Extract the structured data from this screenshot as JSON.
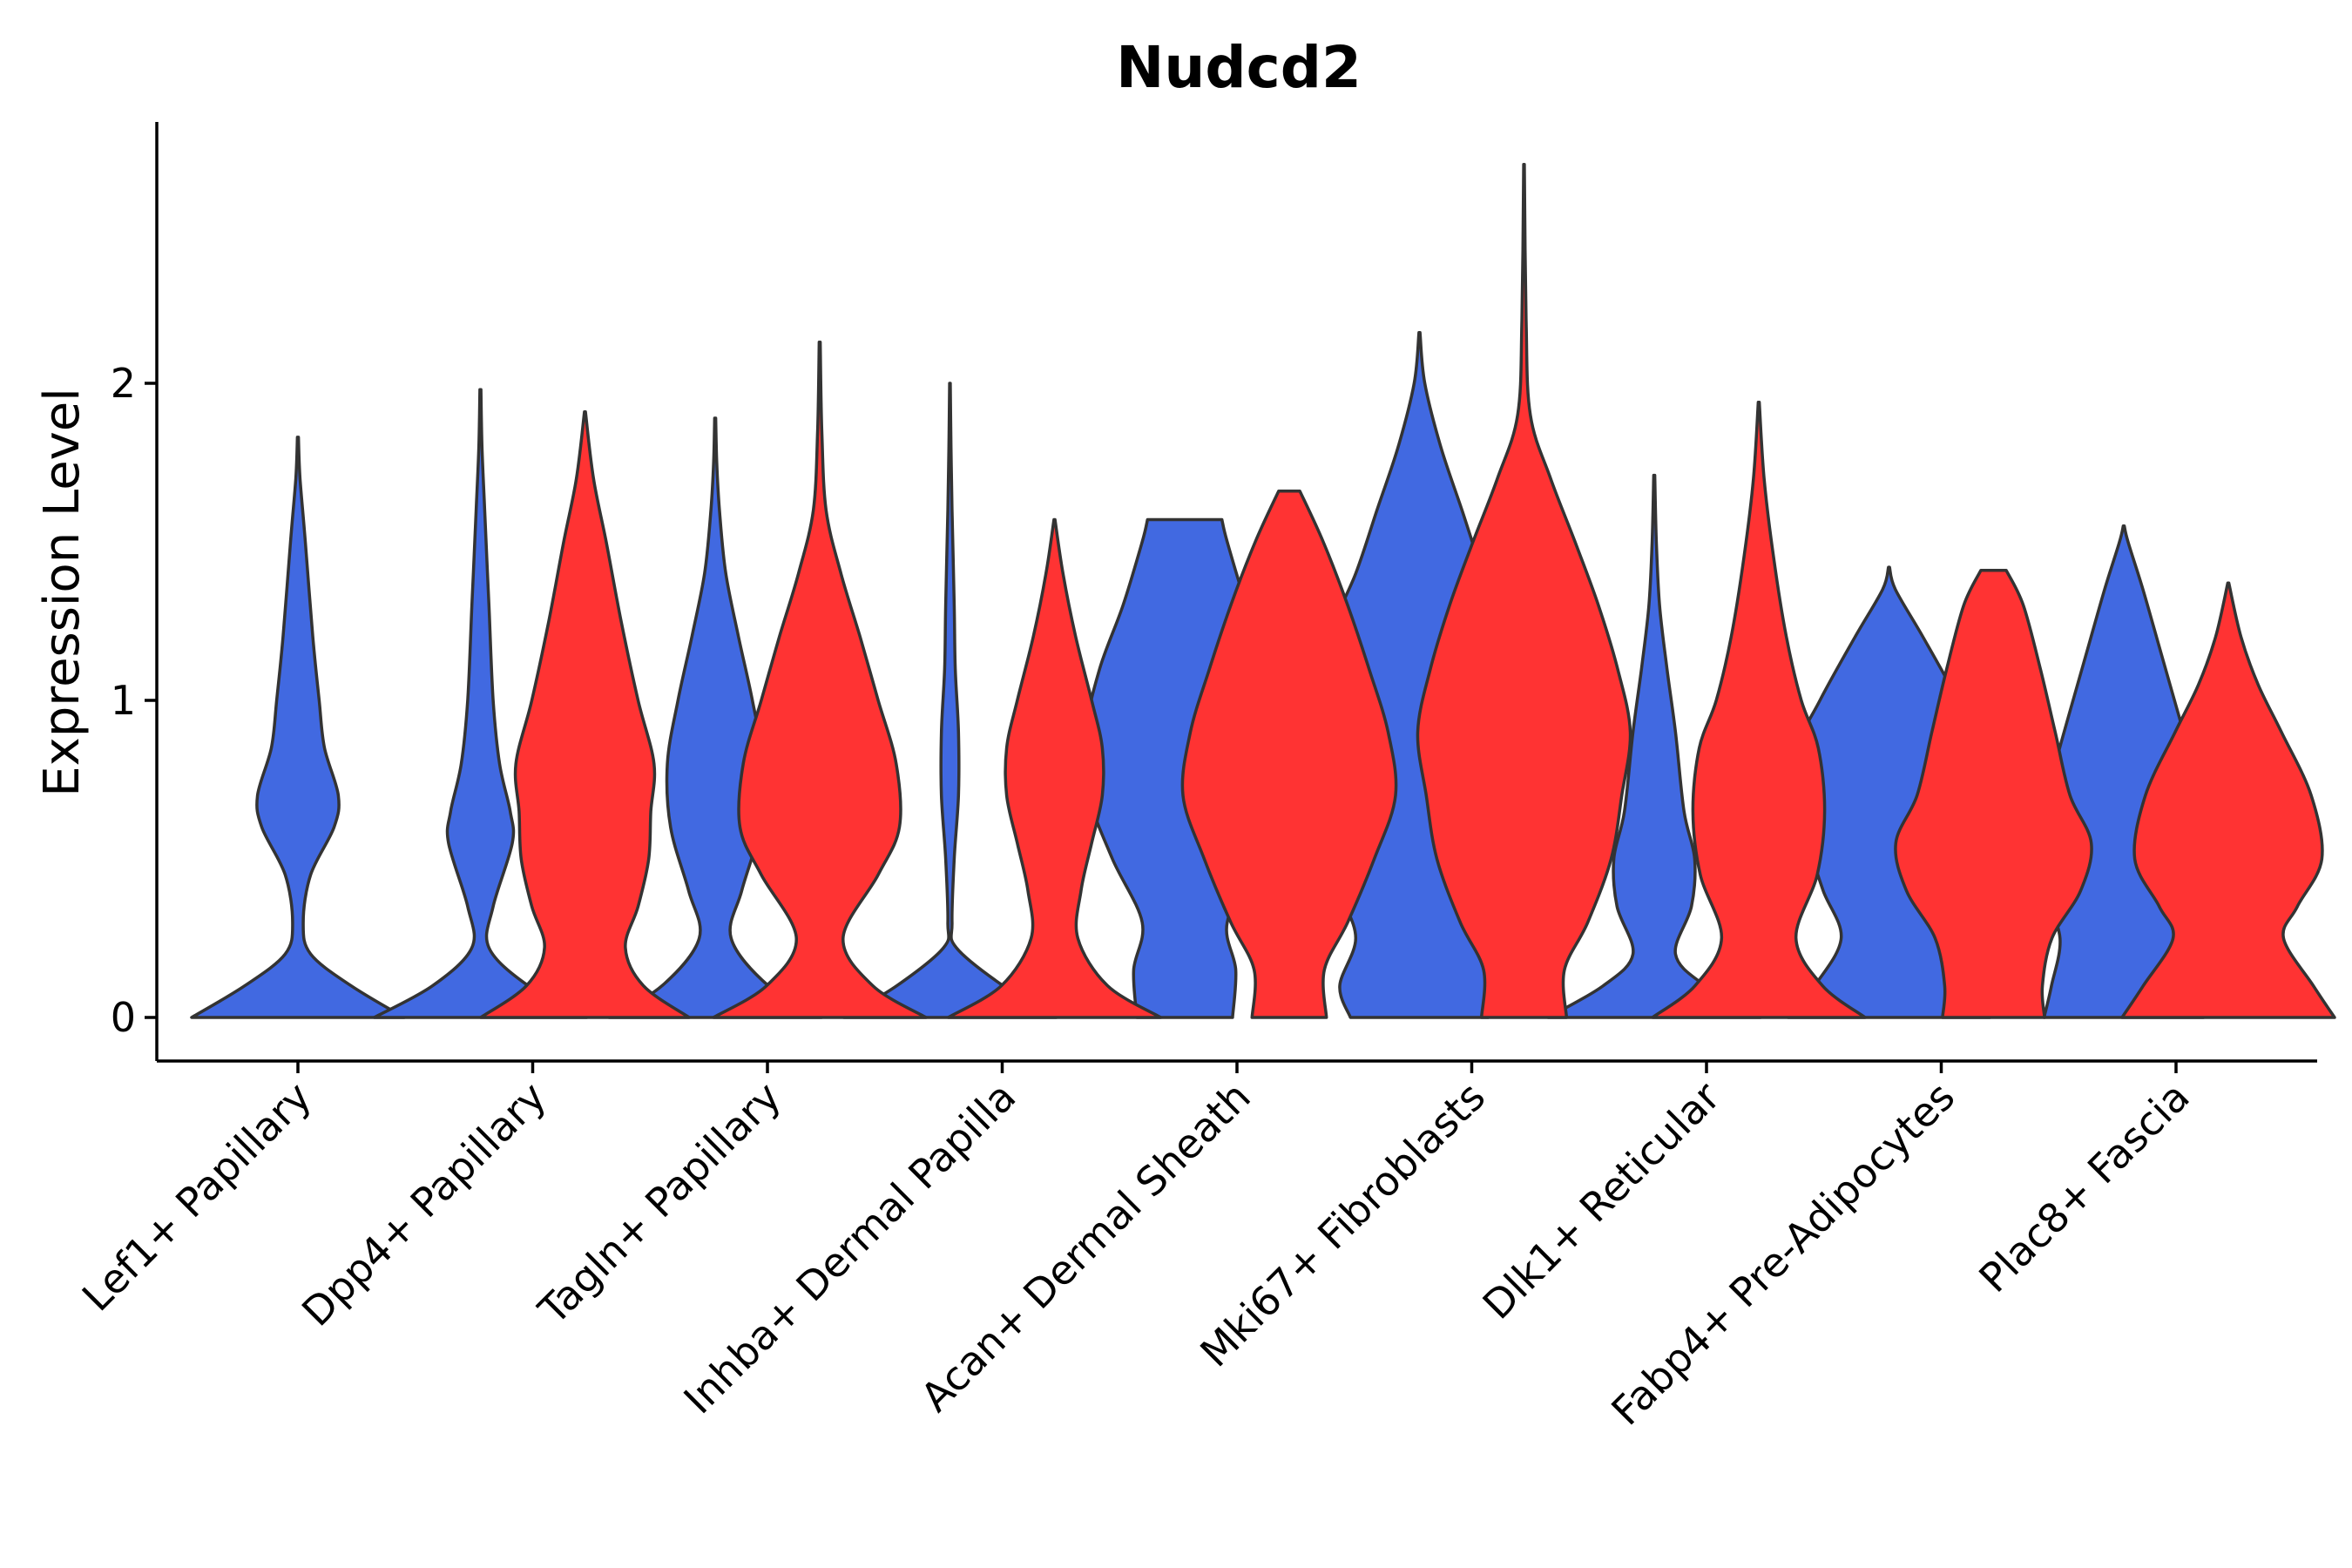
{
  "chart_data": {
    "type": "violin",
    "title": "Nudcd2",
    "xlabel": "",
    "ylabel": "Expression Level",
    "ylim": [
      -0.13,
      2.82
    ],
    "yticks": [
      0,
      1,
      2
    ],
    "grid": false,
    "legend": "none",
    "categories": [
      "Lef1+ Papillary",
      "Dpp4+ Papillary",
      "Tagln+ Papillary",
      "Inhba+ Dermal Papilla",
      "Acan+ Dermal Sheath",
      "Mki67+ Fibroblasts",
      "Dlk1+ Reticular",
      "Fabp4+ Pre-Adipocytes",
      "Plac8+ Fascia"
    ],
    "series": [
      {
        "name": "group1",
        "color": "#4169E1",
        "violins": [
          {
            "category": "Lef1+ Papillary",
            "max": 1.83,
            "profile": [
              [
                0,
                1.0
              ],
              [
                0.1,
                0.5
              ],
              [
                0.2,
                0.12
              ],
              [
                0.3,
                0.05
              ],
              [
                0.45,
                0.12
              ],
              [
                0.6,
                0.34
              ],
              [
                0.7,
                0.38
              ],
              [
                0.85,
                0.25
              ],
              [
                1.0,
                0.2
              ],
              [
                1.2,
                0.14
              ],
              [
                1.5,
                0.07
              ],
              [
                1.7,
                0.02
              ],
              [
                1.83,
                0.005
              ]
            ]
          },
          {
            "category": "Dpp4+ Papillary",
            "max": 1.98,
            "profile": [
              [
                0,
                1.0
              ],
              [
                0.1,
                0.45
              ],
              [
                0.22,
                0.08
              ],
              [
                0.35,
                0.12
              ],
              [
                0.55,
                0.3
              ],
              [
                0.65,
                0.28
              ],
              [
                0.8,
                0.18
              ],
              [
                1.0,
                0.12
              ],
              [
                1.3,
                0.08
              ],
              [
                1.6,
                0.04
              ],
              [
                1.8,
                0.015
              ],
              [
                1.98,
                0.005
              ]
            ]
          },
          {
            "category": "Tagln+ Papillary",
            "max": 1.89,
            "profile": [
              [
                0,
                1.0
              ],
              [
                0.1,
                0.5
              ],
              [
                0.25,
                0.15
              ],
              [
                0.4,
                0.25
              ],
              [
                0.6,
                0.42
              ],
              [
                0.8,
                0.45
              ],
              [
                1.0,
                0.35
              ],
              [
                1.2,
                0.22
              ],
              [
                1.4,
                0.1
              ],
              [
                1.6,
                0.04
              ],
              [
                1.75,
                0.015
              ],
              [
                1.89,
                0.005
              ]
            ]
          },
          {
            "category": "Inhba+ Dermal Papilla",
            "max": 2.0,
            "profile": [
              [
                0,
                1.0
              ],
              [
                0.1,
                0.5
              ],
              [
                0.22,
                0.06
              ],
              [
                0.3,
                0.02
              ],
              [
                0.5,
                0.04
              ],
              [
                0.7,
                0.08
              ],
              [
                0.9,
                0.08
              ],
              [
                1.1,
                0.05
              ],
              [
                1.3,
                0.04
              ],
              [
                1.6,
                0.02
              ],
              [
                1.8,
                0.01
              ],
              [
                2.0,
                0.003
              ]
            ]
          },
          {
            "category": "Acan+ Dermal Sheath",
            "max": 1.57,
            "profile": [
              [
                0,
                0.45
              ],
              [
                0.15,
                0.48
              ],
              [
                0.3,
                0.4
              ],
              [
                0.5,
                0.68
              ],
              [
                0.7,
                0.9
              ],
              [
                0.9,
                0.93
              ],
              [
                1.1,
                0.8
              ],
              [
                1.3,
                0.58
              ],
              [
                1.5,
                0.4
              ],
              [
                1.57,
                0.35
              ]
            ]
          },
          {
            "category": "Mki67+ Fibroblasts",
            "max": 2.16,
            "profile": [
              [
                0,
                0.65
              ],
              [
                0.1,
                0.75
              ],
              [
                0.25,
                0.6
              ],
              [
                0.4,
                0.75
              ],
              [
                0.6,
                0.9
              ],
              [
                0.85,
                0.95
              ],
              [
                1.0,
                0.92
              ],
              [
                1.2,
                0.85
              ],
              [
                1.4,
                0.6
              ],
              [
                1.6,
                0.4
              ],
              [
                1.8,
                0.2
              ],
              [
                2.0,
                0.05
              ],
              [
                2.16,
                0.005
              ]
            ]
          },
          {
            "category": "Dlk1+ Reticular",
            "max": 1.71,
            "profile": [
              [
                0,
                1.0
              ],
              [
                0.1,
                0.48
              ],
              [
                0.2,
                0.2
              ],
              [
                0.35,
                0.35
              ],
              [
                0.5,
                0.38
              ],
              [
                0.65,
                0.28
              ],
              [
                0.9,
                0.2
              ],
              [
                1.1,
                0.12
              ],
              [
                1.3,
                0.05
              ],
              [
                1.5,
                0.02
              ],
              [
                1.71,
                0.005
              ]
            ]
          },
          {
            "category": "Fabp4+ Pre-Adipocytes",
            "max": 1.42,
            "profile": [
              [
                0,
                0.95
              ],
              [
                0.1,
                0.7
              ],
              [
                0.25,
                0.45
              ],
              [
                0.4,
                0.62
              ],
              [
                0.55,
                0.76
              ],
              [
                0.65,
                0.82
              ],
              [
                0.85,
                0.85
              ],
              [
                1.0,
                0.65
              ],
              [
                1.2,
                0.32
              ],
              [
                1.35,
                0.06
              ],
              [
                1.42,
                0.005
              ]
            ]
          },
          {
            "category": "Plac8+ Fascia",
            "max": 1.55,
            "profile": [
              [
                0,
                0.75
              ],
              [
                0.1,
                0.68
              ],
              [
                0.25,
                0.6
              ],
              [
                0.4,
                0.75
              ],
              [
                0.55,
                0.8
              ],
              [
                0.75,
                0.68
              ],
              [
                0.95,
                0.52
              ],
              [
                1.15,
                0.35
              ],
              [
                1.35,
                0.18
              ],
              [
                1.5,
                0.04
              ],
              [
                1.55,
                0.005
              ]
            ]
          }
        ]
      },
      {
        "name": "group2",
        "color": "#FF3333",
        "violins": [
          {
            "category": "Dpp4+ Papillary",
            "max": 1.91,
            "profile": [
              [
                0,
                0.98
              ],
              [
                0.1,
                0.55
              ],
              [
                0.22,
                0.38
              ],
              [
                0.35,
                0.5
              ],
              [
                0.5,
                0.6
              ],
              [
                0.65,
                0.62
              ],
              [
                0.8,
                0.65
              ],
              [
                1.0,
                0.5
              ],
              [
                1.25,
                0.34
              ],
              [
                1.5,
                0.2
              ],
              [
                1.7,
                0.08
              ],
              [
                1.91,
                0.005
              ]
            ]
          },
          {
            "category": "Tagln+ Papillary",
            "max": 2.13,
            "profile": [
              [
                0,
                1.0
              ],
              [
                0.1,
                0.5
              ],
              [
                0.25,
                0.22
              ],
              [
                0.45,
                0.55
              ],
              [
                0.6,
                0.75
              ],
              [
                0.8,
                0.72
              ],
              [
                1.0,
                0.55
              ],
              [
                1.2,
                0.38
              ],
              [
                1.4,
                0.2
              ],
              [
                1.6,
                0.06
              ],
              [
                1.85,
                0.02
              ],
              [
                2.13,
                0.005
              ]
            ]
          },
          {
            "category": "Inhba+ Dermal Papilla",
            "max": 1.57,
            "profile": [
              [
                0,
                1.0
              ],
              [
                0.1,
                0.5
              ],
              [
                0.25,
                0.22
              ],
              [
                0.4,
                0.25
              ],
              [
                0.55,
                0.35
              ],
              [
                0.7,
                0.45
              ],
              [
                0.85,
                0.45
              ],
              [
                1.0,
                0.35
              ],
              [
                1.2,
                0.2
              ],
              [
                1.4,
                0.08
              ],
              [
                1.57,
                0.005
              ]
            ]
          },
          {
            "category": "Acan+ Dermal Sheath",
            "max": 1.66,
            "profile": [
              [
                0,
                0.35
              ],
              [
                0.15,
                0.33
              ],
              [
                0.3,
                0.55
              ],
              [
                0.5,
                0.8
              ],
              [
                0.7,
                1.0
              ],
              [
                0.9,
                0.93
              ],
              [
                1.1,
                0.75
              ],
              [
                1.3,
                0.55
              ],
              [
                1.5,
                0.32
              ],
              [
                1.66,
                0.1
              ]
            ]
          },
          {
            "category": "Mki67+ Fibroblasts",
            "max": 2.69,
            "profile": [
              [
                0,
                0.4
              ],
              [
                0.15,
                0.38
              ],
              [
                0.3,
                0.6
              ],
              [
                0.5,
                0.82
              ],
              [
                0.7,
                0.92
              ],
              [
                0.9,
                1.0
              ],
              [
                1.1,
                0.88
              ],
              [
                1.3,
                0.7
              ],
              [
                1.5,
                0.48
              ],
              [
                1.7,
                0.25
              ],
              [
                1.9,
                0.06
              ],
              [
                2.2,
                0.02
              ],
              [
                2.69,
                0.003
              ]
            ]
          },
          {
            "category": "Dlk1+ Reticular",
            "max": 1.94,
            "profile": [
              [
                0,
                1.0
              ],
              [
                0.1,
                0.6
              ],
              [
                0.25,
                0.35
              ],
              [
                0.45,
                0.55
              ],
              [
                0.65,
                0.62
              ],
              [
                0.85,
                0.56
              ],
              [
                1.0,
                0.4
              ],
              [
                1.2,
                0.26
              ],
              [
                1.45,
                0.14
              ],
              [
                1.7,
                0.05
              ],
              [
                1.94,
                0.005
              ]
            ]
          },
          {
            "category": "Fabp4+ Pre-Adipocytes",
            "max": 1.41,
            "profile": [
              [
                0,
                0.48
              ],
              [
                0.1,
                0.46
              ],
              [
                0.25,
                0.55
              ],
              [
                0.4,
                0.82
              ],
              [
                0.55,
                0.92
              ],
              [
                0.7,
                0.72
              ],
              [
                0.9,
                0.58
              ],
              [
                1.1,
                0.44
              ],
              [
                1.3,
                0.28
              ],
              [
                1.41,
                0.12
              ]
            ]
          },
          {
            "category": "Plac8+ Fascia",
            "max": 1.37,
            "profile": [
              [
                0,
                1.0
              ],
              [
                0.1,
                0.8
              ],
              [
                0.25,
                0.52
              ],
              [
                0.35,
                0.65
              ],
              [
                0.5,
                0.88
              ],
              [
                0.7,
                0.78
              ],
              [
                0.9,
                0.5
              ],
              [
                1.05,
                0.28
              ],
              [
                1.2,
                0.12
              ],
              [
                1.37,
                0.005
              ]
            ]
          }
        ]
      }
    ]
  }
}
